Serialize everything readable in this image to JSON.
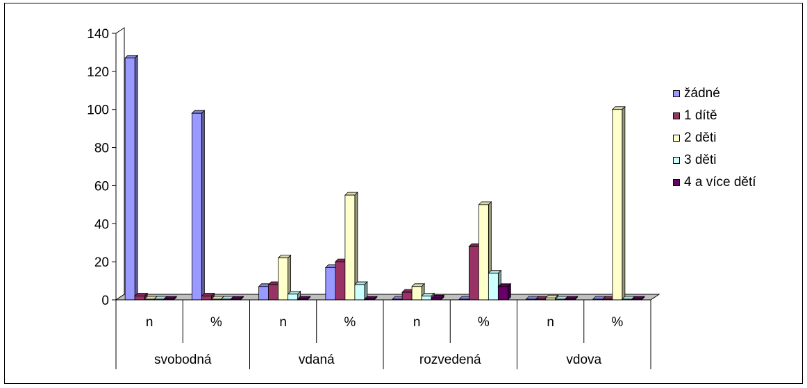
{
  "chart_data": {
    "type": "bar",
    "categories": [
      {
        "group": "svobodná",
        "sub": "n"
      },
      {
        "group": "svobodná",
        "sub": "%"
      },
      {
        "group": "vdaná",
        "sub": "n"
      },
      {
        "group": "vdaná",
        "sub": "%"
      },
      {
        "group": "rozvedená",
        "sub": "n"
      },
      {
        "group": "rozvedená",
        "sub": "%"
      },
      {
        "group": "vdova",
        "sub": "n"
      },
      {
        "group": "vdova",
        "sub": "%"
      }
    ],
    "groups": [
      "svobodná",
      "vdaná",
      "rozvedená",
      "vdova"
    ],
    "series": [
      {
        "name": "žádné",
        "color": "#9999FF",
        "values": [
          127,
          98,
          7,
          17,
          0,
          0,
          0,
          0
        ]
      },
      {
        "name": "1 dítě",
        "color": "#993366",
        "values": [
          2,
          2,
          8,
          20,
          4,
          28,
          0,
          0
        ]
      },
      {
        "name": "2 děti",
        "color": "#FFFFCC",
        "values": [
          0,
          0,
          22,
          55,
          7,
          50,
          1,
          100
        ]
      },
      {
        "name": "3 děti",
        "color": "#CCFFFF",
        "values": [
          0,
          0,
          3,
          8,
          2,
          14,
          0,
          0
        ]
      },
      {
        "name": "4 a více dětí",
        "color": "#660066",
        "values": [
          0,
          0,
          0,
          0,
          1,
          7,
          0,
          0
        ]
      }
    ],
    "ylim": [
      0,
      140
    ],
    "yticks": [
      0,
      20,
      40,
      60,
      80,
      100,
      120,
      140
    ],
    "grid": false,
    "legend": "right",
    "title": "",
    "xlabel": "",
    "ylabel": ""
  }
}
